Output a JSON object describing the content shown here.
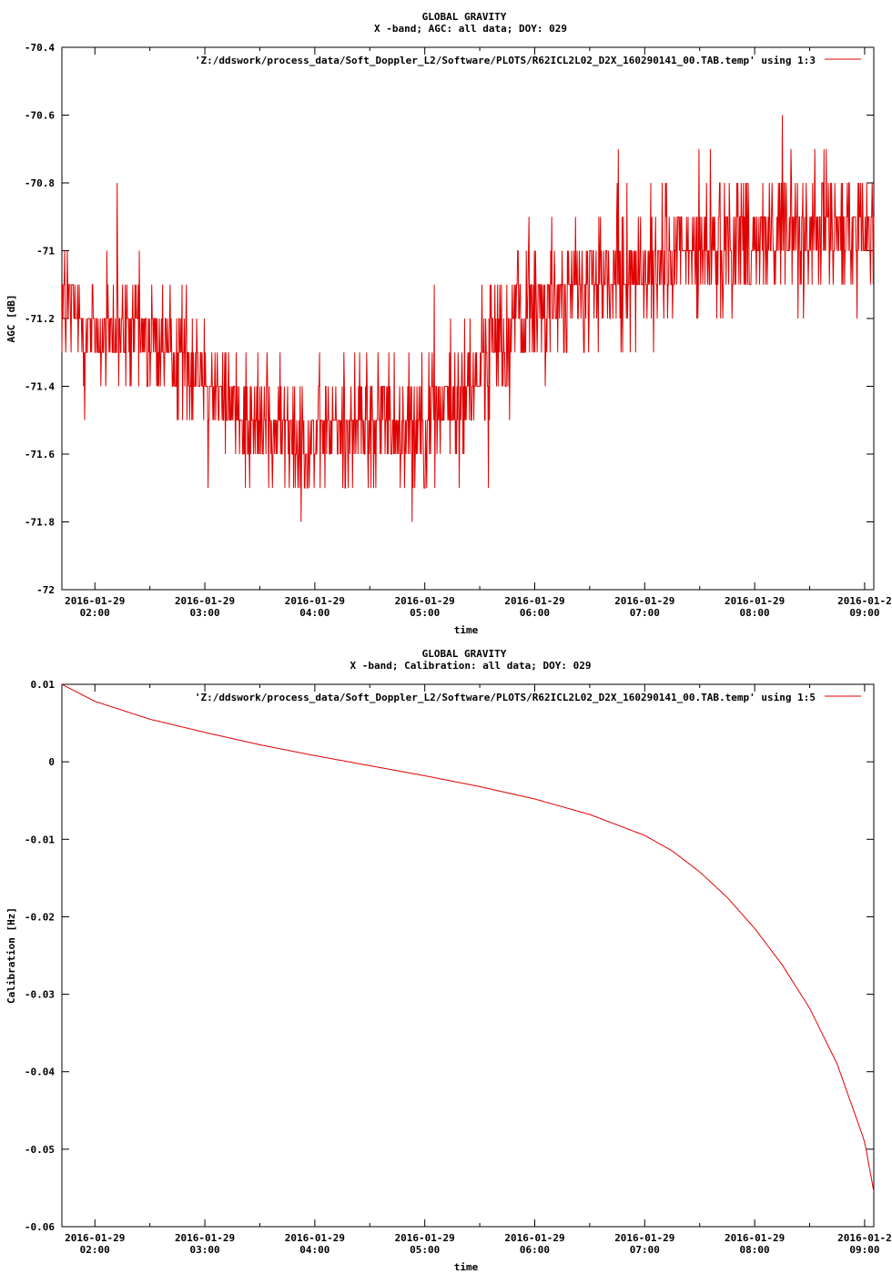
{
  "colors": {
    "series": "#e00000",
    "axis": "#000000",
    "background": "#ffffff"
  },
  "chart_data": [
    {
      "type": "line",
      "title": "GLOBAL GRAVITY",
      "subtitle": "X -band; AGC: all data; DOY: 029",
      "xlabel": "time",
      "ylabel": "AGC [dB]",
      "ylim": [
        -72,
        -70.4
      ],
      "xlim": [
        "2016-01-29 01:42",
        "2016-01-29 09:05"
      ],
      "yticks": [
        -70.4,
        -70.6,
        -70.8,
        -71,
        -71.2,
        -71.4,
        -71.6,
        -71.8,
        -72
      ],
      "ytick_labels": [
        "-70.4",
        "-70.6",
        "-70.8",
        "-71",
        "-71.2",
        "-71.4",
        "-71.6",
        "-71.8",
        "-72"
      ],
      "xticks": [
        "2016-01-29 02:00",
        "2016-01-29 03:00",
        "2016-01-29 04:00",
        "2016-01-29 05:00",
        "2016-01-29 06:00",
        "2016-01-29 07:00",
        "2016-01-29 08:00",
        "2016-01-29 09:00"
      ],
      "xtick_labels": [
        [
          "2016-01-29",
          "02:00"
        ],
        [
          "2016-01-29",
          "03:00"
        ],
        [
          "2016-01-29",
          "04:00"
        ],
        [
          "2016-01-29",
          "05:00"
        ],
        [
          "2016-01-29",
          "06:00"
        ],
        [
          "2016-01-29",
          "07:00"
        ],
        [
          "2016-01-29",
          "08:00"
        ],
        [
          "2016-01-2",
          "09:00"
        ]
      ],
      "legend_position": "top-right",
      "series": [
        {
          "name": "'Z:/ddswork/process_data/Soft_Doppler_L2/Software/PLOTS/R62ICL2L02_D2X_160290141_00.TAB.temp' using 1:3",
          "x": [
            "2016-01-29 01:42",
            "2016-01-29 02:00",
            "2016-01-29 02:30",
            "2016-01-29 03:00",
            "2016-01-29 03:15",
            "2016-01-29 03:30",
            "2016-01-29 04:00",
            "2016-01-29 04:30",
            "2016-01-29 05:00",
            "2016-01-29 05:20",
            "2016-01-29 05:40",
            "2016-01-29 06:00",
            "2016-01-29 06:30",
            "2016-01-29 07:00",
            "2016-01-29 07:30",
            "2016-01-29 08:00",
            "2016-01-29 08:30",
            "2016-01-29 09:05"
          ],
          "y": [
            -71.15,
            -71.25,
            -71.25,
            -71.35,
            -71.45,
            -71.5,
            -71.55,
            -71.5,
            -71.5,
            -71.45,
            -71.25,
            -71.15,
            -71.1,
            -71.05,
            -71.0,
            -70.95,
            -70.95,
            -70.95
          ],
          "noise": 0.12
        }
      ]
    },
    {
      "type": "line",
      "title": "GLOBAL GRAVITY",
      "subtitle": "X -band; Calibration: all data; DOY: 029",
      "xlabel": "time",
      "ylabel": "Calibration [Hz]",
      "ylim": [
        -0.06,
        0.01
      ],
      "xlim": [
        "2016-01-29 01:42",
        "2016-01-29 09:05"
      ],
      "yticks": [
        0.01,
        0,
        -0.01,
        -0.02,
        -0.03,
        -0.04,
        -0.05,
        -0.06
      ],
      "ytick_labels": [
        "0.01",
        "0",
        "-0.01",
        "-0.02",
        "-0.03",
        "-0.04",
        "-0.05",
        "-0.06"
      ],
      "xticks": [
        "2016-01-29 02:00",
        "2016-01-29 03:00",
        "2016-01-29 04:00",
        "2016-01-29 05:00",
        "2016-01-29 06:00",
        "2016-01-29 07:00",
        "2016-01-29 08:00",
        "2016-01-29 09:00"
      ],
      "xtick_labels": [
        [
          "2016-01-29",
          "02:00"
        ],
        [
          "2016-01-29",
          "03:00"
        ],
        [
          "2016-01-29",
          "04:00"
        ],
        [
          "2016-01-29",
          "05:00"
        ],
        [
          "2016-01-29",
          "06:00"
        ],
        [
          "2016-01-29",
          "07:00"
        ],
        [
          "2016-01-29",
          "08:00"
        ],
        [
          "2016-01-2",
          "09:00"
        ]
      ],
      "legend_position": "top-right",
      "series": [
        {
          "name": "'Z:/ddswork/process_data/Soft_Doppler_L2/Software/PLOTS/R62ICL2L02_D2X_160290141_00.TAB.temp' using 1:5",
          "x": [
            "2016-01-29 01:42",
            "2016-01-29 02:00",
            "2016-01-29 02:30",
            "2016-01-29 03:00",
            "2016-01-29 03:30",
            "2016-01-29 04:00",
            "2016-01-29 04:30",
            "2016-01-29 05:00",
            "2016-01-29 05:30",
            "2016-01-29 06:00",
            "2016-01-29 06:30",
            "2016-01-29 07:00",
            "2016-01-29 07:15",
            "2016-01-29 07:30",
            "2016-01-29 07:45",
            "2016-01-29 08:00",
            "2016-01-29 08:15",
            "2016-01-29 08:30",
            "2016-01-29 08:45",
            "2016-01-29 09:00",
            "2016-01-29 09:05"
          ],
          "y": [
            0.01,
            0.0078,
            0.0055,
            0.0038,
            0.0022,
            0.0008,
            -0.0005,
            -0.0018,
            -0.0032,
            -0.0048,
            -0.0068,
            -0.0095,
            -0.0115,
            -0.0142,
            -0.0175,
            -0.0215,
            -0.0262,
            -0.0318,
            -0.039,
            -0.049,
            -0.0555
          ]
        }
      ]
    }
  ]
}
